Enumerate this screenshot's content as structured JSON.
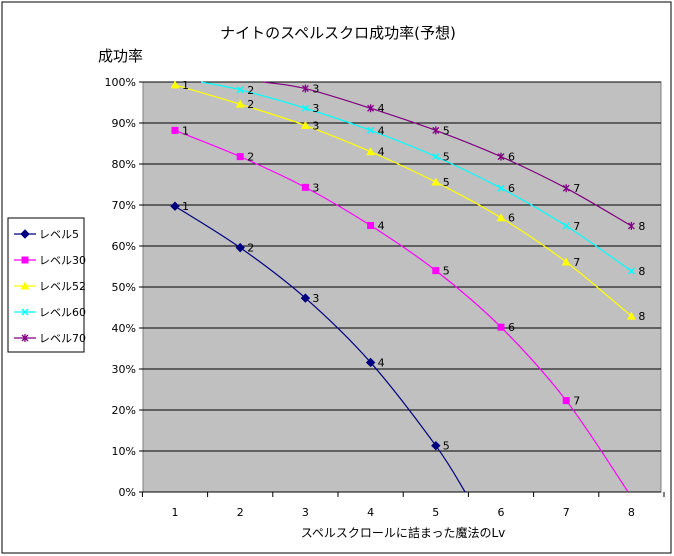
{
  "chart_data": {
    "type": "line",
    "title": "ナイトのスペルスクロ成功率(予想)",
    "ylabel": "成功率",
    "xlabel": "スペルスクロールに詰まった魔法のLv",
    "x": [
      1,
      2,
      3,
      4,
      5,
      6,
      7,
      8
    ],
    "x_tick_labels": [
      "1",
      "2",
      "3",
      "4",
      "5",
      "6",
      "7",
      "8"
    ],
    "ylim": [
      0,
      100
    ],
    "y_tick_labels": [
      "0%",
      "10%",
      "20%",
      "30%",
      "40%",
      "50%",
      "60%",
      "70%",
      "80%",
      "90%",
      "100%"
    ],
    "grid": "horizontal",
    "legend_position": "left",
    "background_color": "#c0c0c0",
    "series": [
      {
        "name": "レベル5",
        "color": "#000080",
        "marker": "diamond",
        "points": [
          [
            1,
            69.7
          ],
          [
            2,
            59.6
          ],
          [
            3,
            47.3
          ],
          [
            4,
            31.6
          ],
          [
            5,
            11.3
          ]
        ],
        "labels": [
          "1",
          "2",
          "3",
          "4",
          "5"
        ],
        "curve_end": [
          5.45,
          0
        ]
      },
      {
        "name": "レベル30",
        "color": "#ff00ff",
        "marker": "square",
        "points": [
          [
            1,
            88.2
          ],
          [
            2,
            81.8
          ],
          [
            3,
            74.3
          ],
          [
            4,
            65.0
          ],
          [
            5,
            54.0
          ],
          [
            6,
            40.2
          ],
          [
            7,
            22.3
          ]
        ],
        "labels": [
          "1",
          "2",
          "3",
          "4",
          "5",
          "6",
          "7"
        ],
        "curve_end": [
          7.95,
          0
        ]
      },
      {
        "name": "レベル52",
        "color": "#ffff00",
        "marker": "triangle",
        "points": [
          [
            1,
            99.3
          ],
          [
            2,
            94.6
          ],
          [
            3,
            89.4
          ],
          [
            4,
            83.0
          ],
          [
            5,
            75.6
          ],
          [
            6,
            66.9
          ],
          [
            7,
            56.1
          ],
          [
            8,
            42.9
          ]
        ],
        "labels": [
          "1",
          "2",
          "3",
          "4",
          "5",
          "6",
          "7",
          "8"
        ]
      },
      {
        "name": "レベル60",
        "color": "#00ffff",
        "marker": "x",
        "points": [
          [
            2,
            98.1
          ],
          [
            3,
            93.6
          ],
          [
            4,
            88.2
          ],
          [
            5,
            81.8
          ],
          [
            6,
            74.1
          ],
          [
            7,
            64.9
          ],
          [
            8,
            53.9
          ]
        ],
        "labels": [
          "2",
          "3",
          "4",
          "5",
          "6",
          "7",
          "8"
        ],
        "curve_start": [
          1.4,
          100
        ]
      },
      {
        "name": "レベル70",
        "color": "#800080",
        "marker": "star",
        "points": [
          [
            3,
            98.4
          ],
          [
            4,
            93.6
          ],
          [
            5,
            88.2
          ],
          [
            6,
            81.8
          ],
          [
            7,
            74.1
          ],
          [
            8,
            64.9
          ]
        ],
        "labels": [
          "3",
          "4",
          "5",
          "6",
          "7",
          "8"
        ],
        "curve_start": [
          2.35,
          100
        ]
      }
    ]
  }
}
